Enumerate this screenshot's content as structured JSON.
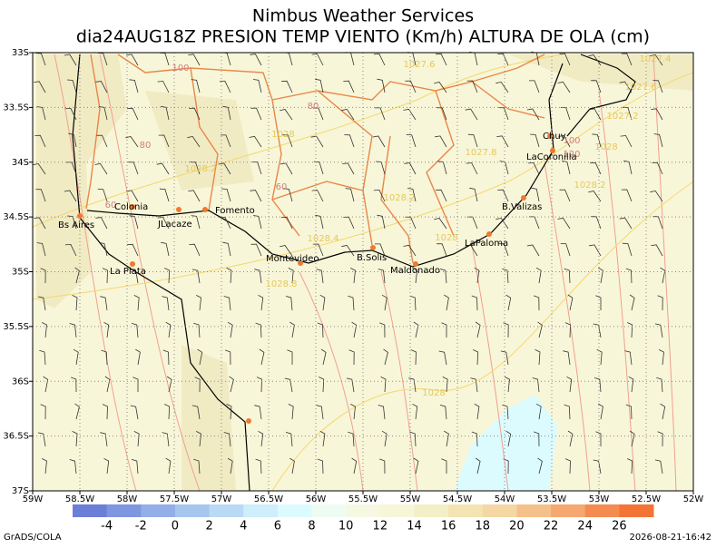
{
  "header": {
    "title": "Nimbus Weather Services",
    "subtitle": "dia24AUG18Z PRESION TEMP VIENTO (Km/h) ALTURA DE OLA (cm)"
  },
  "map": {
    "xlabels": [
      "59W",
      "58.5W",
      "58W",
      "57.5W",
      "57W",
      "56.5W",
      "56W",
      "55.5W",
      "55W",
      "54.5W",
      "54W",
      "53.5W",
      "53W",
      "52.5W",
      "52W"
    ],
    "ylabels": [
      "33S",
      "33.5S",
      "34S",
      "34.5S",
      "35S",
      "35.5S",
      "36S",
      "36.5S",
      "37S"
    ],
    "cities": [
      "Chuy",
      "LaCoronilla",
      "B.Valizas",
      "LaPaloma",
      "Maldonado",
      "B.Solis",
      "Montevideo",
      "Fomento",
      "JLacaze",
      "Colonia",
      "Bs Aires",
      "La Plata"
    ],
    "contour_labels": [
      "100",
      "80",
      "80",
      "60",
      "60",
      "1028.2",
      "1028",
      "1028.4",
      "1028.8",
      "1028.2",
      "1027.6",
      "1027.4",
      "1027.6",
      "1027.2",
      "1028",
      "1028.2",
      "1027.8",
      "100",
      "120",
      "1028",
      "1028"
    ]
  },
  "colorbar": {
    "labels": [
      "-4",
      "-2",
      "0",
      "2",
      "4",
      "6",
      "8",
      "10",
      "12",
      "14",
      "16",
      "18",
      "20",
      "22",
      "24",
      "26"
    ]
  },
  "footer": {
    "left": "GrADS/COLA",
    "right": "2026-08-21-16:42"
  }
}
